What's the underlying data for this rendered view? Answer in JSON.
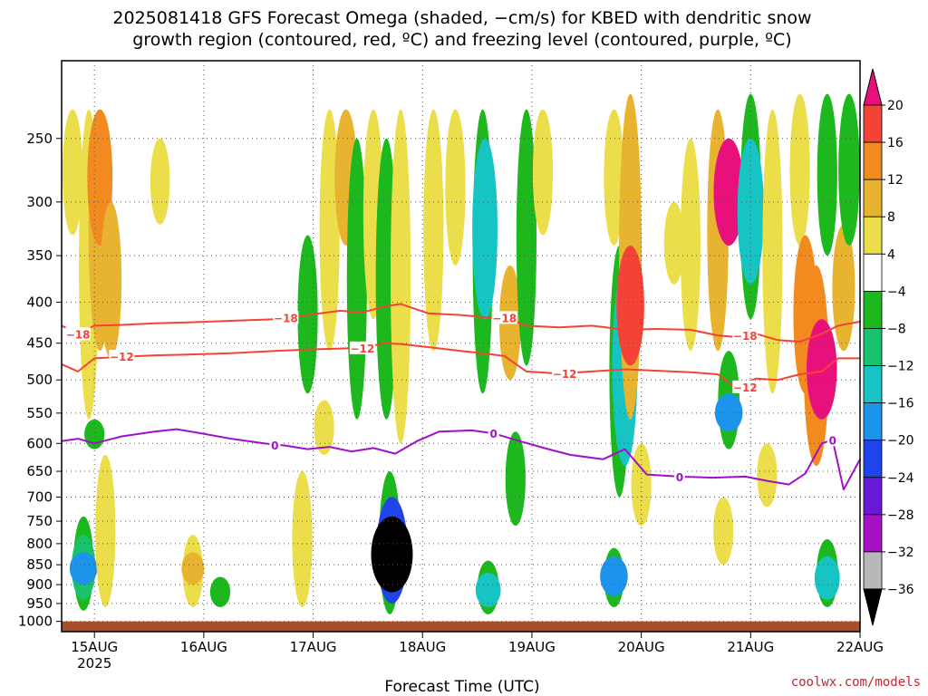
{
  "title_line1": "2025081418 GFS Forecast Omega (shaded, −cm/s) for KBED with dendritic snow",
  "title_line2": "growth region (contoured, red, ºC) and freezing level (contoured, purple, ºC)",
  "credit": "coolwx.com/models",
  "chart_data": {
    "type": "heatmap",
    "title": "2025081418 GFS Forecast Omega (shaded, −cm/s) for KBED with dendritic snow growth region (contoured, red, ºC) and freezing level (contoured, purple, ºC)",
    "xlabel": "Forecast Time (UTC)",
    "ylabel": "",
    "y_axis": {
      "scale": "log-pressure",
      "reversed": true,
      "range": [
        1030,
        200
      ],
      "ticks": [
        250,
        300,
        350,
        400,
        450,
        500,
        550,
        600,
        650,
        700,
        750,
        800,
        850,
        900,
        950,
        1000
      ],
      "tick_labels": [
        "250",
        "300",
        "350",
        "400",
        "450",
        "500",
        "550",
        "600",
        "650",
        "700",
        "750",
        "800",
        "850",
        "900",
        "950",
        "1000"
      ]
    },
    "x_axis": {
      "range_days": [
        14.95,
        22.25
      ],
      "ticks": [
        {
          "label": "15AUG",
          "sublabel": "2025",
          "day": 15.25
        },
        {
          "label": "16AUG",
          "day": 16.25
        },
        {
          "label": "17AUG",
          "day": 17.25
        },
        {
          "label": "18AUG",
          "day": 18.25
        },
        {
          "label": "19AUG",
          "day": 19.25
        },
        {
          "label": "20AUG",
          "day": 20.25
        },
        {
          "label": "21AUG",
          "day": 21.25
        },
        {
          "label": "22AUG",
          "day": 22.25
        }
      ]
    },
    "grid": true,
    "colorbar": {
      "labels": [
        "20",
        "16",
        "12",
        "8",
        "4",
        "−4",
        "−8",
        "−12",
        "−16",
        "−20",
        "−24",
        "−28",
        "−32",
        "−36"
      ],
      "bins": [
        {
          "lo": 20,
          "hi": null,
          "color": "#e8117b"
        },
        {
          "lo": 16,
          "hi": 20,
          "color": "#f44336"
        },
        {
          "lo": 12,
          "hi": 16,
          "color": "#f28a20"
        },
        {
          "lo": 8,
          "hi": 12,
          "color": "#e8b430"
        },
        {
          "lo": 4,
          "hi": 8,
          "color": "#ecde4a"
        },
        {
          "lo": -4,
          "hi": 4,
          "color": "#ffffff"
        },
        {
          "lo": -8,
          "hi": -4,
          "color": "#1db81d"
        },
        {
          "lo": -12,
          "hi": -8,
          "color": "#19c26c"
        },
        {
          "lo": -16,
          "hi": -12,
          "color": "#17c4c4"
        },
        {
          "lo": -20,
          "hi": -16,
          "color": "#1d94ec"
        },
        {
          "lo": -24,
          "hi": -20,
          "color": "#1f44ec"
        },
        {
          "lo": -28,
          "hi": -24,
          "color": "#6a18d8"
        },
        {
          "lo": -32,
          "hi": -28,
          "color": "#a810c8"
        },
        {
          "lo": -36,
          "hi": -32,
          "color": "#b8b8b8"
        },
        {
          "lo": null,
          "hi": -36,
          "color": "#000000"
        }
      ]
    },
    "omega_cells": [
      {
        "day": 15.05,
        "p_top": 230,
        "p_bot": 330,
        "val": 6
      },
      {
        "day": 15.2,
        "p_top": 230,
        "p_bot": 560,
        "val": 6
      },
      {
        "day": 15.3,
        "p_top": 230,
        "p_bot": 460,
        "val": 10
      },
      {
        "day": 15.3,
        "p_top": 230,
        "p_bot": 340,
        "val": 14
      },
      {
        "day": 15.4,
        "p_top": 300,
        "p_bot": 470,
        "val": 8
      },
      {
        "day": 15.25,
        "p_top": 560,
        "p_bot": 610,
        "val": -6
      },
      {
        "day": 15.15,
        "p_top": 740,
        "p_bot": 970,
        "val": -6
      },
      {
        "day": 15.15,
        "p_top": 780,
        "p_bot": 940,
        "val": -12
      },
      {
        "day": 15.15,
        "p_top": 820,
        "p_bot": 900,
        "val": -18
      },
      {
        "day": 15.35,
        "p_top": 620,
        "p_bot": 960,
        "val": 6
      },
      {
        "day": 15.85,
        "p_top": 250,
        "p_bot": 320,
        "val": 5
      },
      {
        "day": 16.15,
        "p_top": 780,
        "p_bot": 960,
        "val": 6
      },
      {
        "day": 16.15,
        "p_top": 820,
        "p_bot": 900,
        "val": 10
      },
      {
        "day": 16.4,
        "p_top": 880,
        "p_bot": 960,
        "val": -6
      },
      {
        "day": 17.2,
        "p_top": 330,
        "p_bot": 520,
        "val": -6
      },
      {
        "day": 17.4,
        "p_top": 230,
        "p_bot": 460,
        "val": 6
      },
      {
        "day": 17.55,
        "p_top": 230,
        "p_bot": 340,
        "val": 10
      },
      {
        "day": 17.65,
        "p_top": 250,
        "p_bot": 560,
        "val": -6
      },
      {
        "day": 17.8,
        "p_top": 230,
        "p_bot": 420,
        "val": 6
      },
      {
        "day": 17.92,
        "p_top": 250,
        "p_bot": 560,
        "val": -8
      },
      {
        "day": 17.15,
        "p_top": 650,
        "p_bot": 960,
        "val": 6
      },
      {
        "day": 17.35,
        "p_top": 530,
        "p_bot": 620,
        "val": 6
      },
      {
        "day": 17.95,
        "p_top": 650,
        "p_bot": 980,
        "val": -8
      },
      {
        "day": 17.97,
        "p_top": 700,
        "p_bot": 950,
        "val": -24
      },
      {
        "day": 17.97,
        "p_top": 740,
        "p_bot": 920,
        "val": -40
      },
      {
        "day": 18.05,
        "p_top": 230,
        "p_bot": 600,
        "val": 6
      },
      {
        "day": 18.35,
        "p_top": 230,
        "p_bot": 460,
        "val": 6
      },
      {
        "day": 18.55,
        "p_top": 230,
        "p_bot": 360,
        "val": 6
      },
      {
        "day": 18.8,
        "p_top": 230,
        "p_bot": 520,
        "val": -6
      },
      {
        "day": 18.82,
        "p_top": 250,
        "p_bot": 420,
        "val": -14
      },
      {
        "day": 19.05,
        "p_top": 360,
        "p_bot": 500,
        "val": 8
      },
      {
        "day": 19.2,
        "p_top": 230,
        "p_bot": 480,
        "val": -6
      },
      {
        "day": 19.35,
        "p_top": 230,
        "p_bot": 330,
        "val": 6
      },
      {
        "day": 18.85,
        "p_top": 840,
        "p_bot": 980,
        "val": -8
      },
      {
        "day": 18.85,
        "p_top": 870,
        "p_bot": 960,
        "val": -14
      },
      {
        "day": 19.1,
        "p_top": 580,
        "p_bot": 760,
        "val": -6
      },
      {
        "day": 20.0,
        "p_top": 230,
        "p_bot": 340,
        "val": 6
      },
      {
        "day": 20.05,
        "p_top": 340,
        "p_bot": 700,
        "val": -6
      },
      {
        "day": 20.1,
        "p_top": 360,
        "p_bot": 640,
        "val": -14
      },
      {
        "day": 20.15,
        "p_top": 220,
        "p_bot": 560,
        "val": 10
      },
      {
        "day": 20.15,
        "p_top": 340,
        "p_bot": 480,
        "val": 18
      },
      {
        "day": 20.25,
        "p_top": 600,
        "p_bot": 760,
        "val": 6
      },
      {
        "day": 20.0,
        "p_top": 810,
        "p_bot": 960,
        "val": -6
      },
      {
        "day": 20.0,
        "p_top": 830,
        "p_bot": 930,
        "val": -18
      },
      {
        "day": 20.55,
        "p_top": 300,
        "p_bot": 380,
        "val": 6
      },
      {
        "day": 20.7,
        "p_top": 250,
        "p_bot": 460,
        "val": 6
      },
      {
        "day": 20.95,
        "p_top": 230,
        "p_bot": 460,
        "val": 8
      },
      {
        "day": 21.05,
        "p_top": 250,
        "p_bot": 340,
        "val": 22
      },
      {
        "day": 21.05,
        "p_top": 460,
        "p_bot": 610,
        "val": -8
      },
      {
        "day": 21.05,
        "p_top": 520,
        "p_bot": 580,
        "val": -18
      },
      {
        "day": 21.25,
        "p_top": 220,
        "p_bot": 420,
        "val": -8
      },
      {
        "day": 21.25,
        "p_top": 250,
        "p_bot": 380,
        "val": -16
      },
      {
        "day": 21.45,
        "p_top": 230,
        "p_bot": 520,
        "val": 6
      },
      {
        "day": 21.4,
        "p_top": 600,
        "p_bot": 720,
        "val": 6
      },
      {
        "day": 21.0,
        "p_top": 700,
        "p_bot": 850,
        "val": 6
      },
      {
        "day": 21.7,
        "p_top": 220,
        "p_bot": 340,
        "val": 6
      },
      {
        "day": 21.75,
        "p_top": 330,
        "p_bot": 520,
        "val": 12
      },
      {
        "day": 21.85,
        "p_top": 360,
        "p_bot": 640,
        "val": 14
      },
      {
        "day": 21.9,
        "p_top": 420,
        "p_bot": 560,
        "val": 22
      },
      {
        "day": 21.95,
        "p_top": 220,
        "p_bot": 350,
        "val": -6
      },
      {
        "day": 22.1,
        "p_top": 320,
        "p_bot": 460,
        "val": 10
      },
      {
        "day": 22.15,
        "p_top": 220,
        "p_bot": 340,
        "val": -8
      },
      {
        "day": 21.95,
        "p_top": 790,
        "p_bot": 960,
        "val": -8
      },
      {
        "day": 21.95,
        "p_top": 830,
        "p_bot": 940,
        "val": -14
      }
    ],
    "series": [
      {
        "name": "-18",
        "color": "#f44336",
        "x": [
          14.95,
          15.1,
          15.25,
          15.5,
          15.8,
          16.1,
          16.5,
          16.9,
          17.25,
          17.5,
          17.7,
          17.9,
          18.05,
          18.3,
          18.6,
          18.85,
          19.0,
          19.2,
          19.5,
          19.8,
          20.1,
          20.4,
          20.7,
          20.95,
          21.1,
          21.3,
          21.5,
          21.7,
          21.9,
          22.05,
          22.25
        ],
        "y": [
          428,
          438,
          428,
          427,
          425,
          424,
          422,
          420,
          414,
          410,
          412,
          405,
          402,
          413,
          415,
          418,
          418,
          428,
          430,
          428,
          433,
          432,
          433,
          440,
          442,
          438,
          446,
          448,
          438,
          428,
          423
        ]
      },
      {
        "name": "-12",
        "color": "#f44336",
        "x": [
          14.95,
          15.1,
          15.25,
          15.5,
          15.8,
          16.1,
          16.5,
          16.9,
          17.25,
          17.5,
          17.7,
          17.9,
          18.05,
          18.3,
          18.6,
          18.85,
          19.0,
          19.2,
          19.5,
          19.8,
          20.1,
          20.4,
          20.7,
          20.95,
          21.1,
          21.3,
          21.5,
          21.7,
          21.9,
          22.05,
          22.25
        ],
        "y": [
          478,
          488,
          470,
          468,
          466,
          465,
          463,
          460,
          458,
          457,
          456,
          450,
          451,
          455,
          460,
          464,
          467,
          488,
          491,
          488,
          485,
          487,
          489,
          492,
          510,
          498,
          500,
          492,
          488,
          470,
          470
        ]
      },
      {
        "name": "0",
        "color": "#a010c8",
        "x": [
          14.95,
          15.1,
          15.25,
          15.5,
          15.8,
          16.0,
          16.2,
          16.5,
          16.8,
          17.0,
          17.2,
          17.4,
          17.6,
          17.8,
          18.0,
          18.2,
          18.4,
          18.7,
          18.9,
          19.1,
          19.4,
          19.6,
          19.9,
          20.1,
          20.3,
          20.6,
          20.9,
          21.2,
          21.4,
          21.6,
          21.75,
          21.9,
          22.0,
          22.1,
          22.25
        ],
        "y": [
          596,
          592,
          600,
          588,
          580,
          576,
          582,
          592,
          600,
          604,
          610,
          606,
          614,
          608,
          618,
          596,
          580,
          578,
          583,
          594,
          610,
          620,
          628,
          610,
          656,
          660,
          662,
          660,
          668,
          675,
          654,
          600,
          594,
          685,
          628
        ]
      }
    ],
    "contour_labels": [
      {
        "text": "−18",
        "day": 15.1,
        "p": 438
      },
      {
        "text": "−18",
        "day": 17.0,
        "p": 418
      },
      {
        "text": "−18",
        "day": 19.0,
        "p": 418
      },
      {
        "text": "−18",
        "day": 21.2,
        "p": 440
      },
      {
        "text": "−12",
        "day": 15.5,
        "p": 467
      },
      {
        "text": "−12",
        "day": 17.7,
        "p": 456
      },
      {
        "text": "−12",
        "day": 19.55,
        "p": 491
      },
      {
        "text": "−12",
        "day": 21.2,
        "p": 510
      },
      {
        "text": "0",
        "day": 16.9,
        "p": 603
      },
      {
        "text": "0",
        "day": 18.9,
        "p": 583
      },
      {
        "text": "0",
        "day": 20.6,
        "p": 660
      },
      {
        "text": "0",
        "day": 22.0,
        "p": 594
      }
    ],
    "ground": {
      "color": "#a84f2a",
      "p_top": 1000
    }
  }
}
